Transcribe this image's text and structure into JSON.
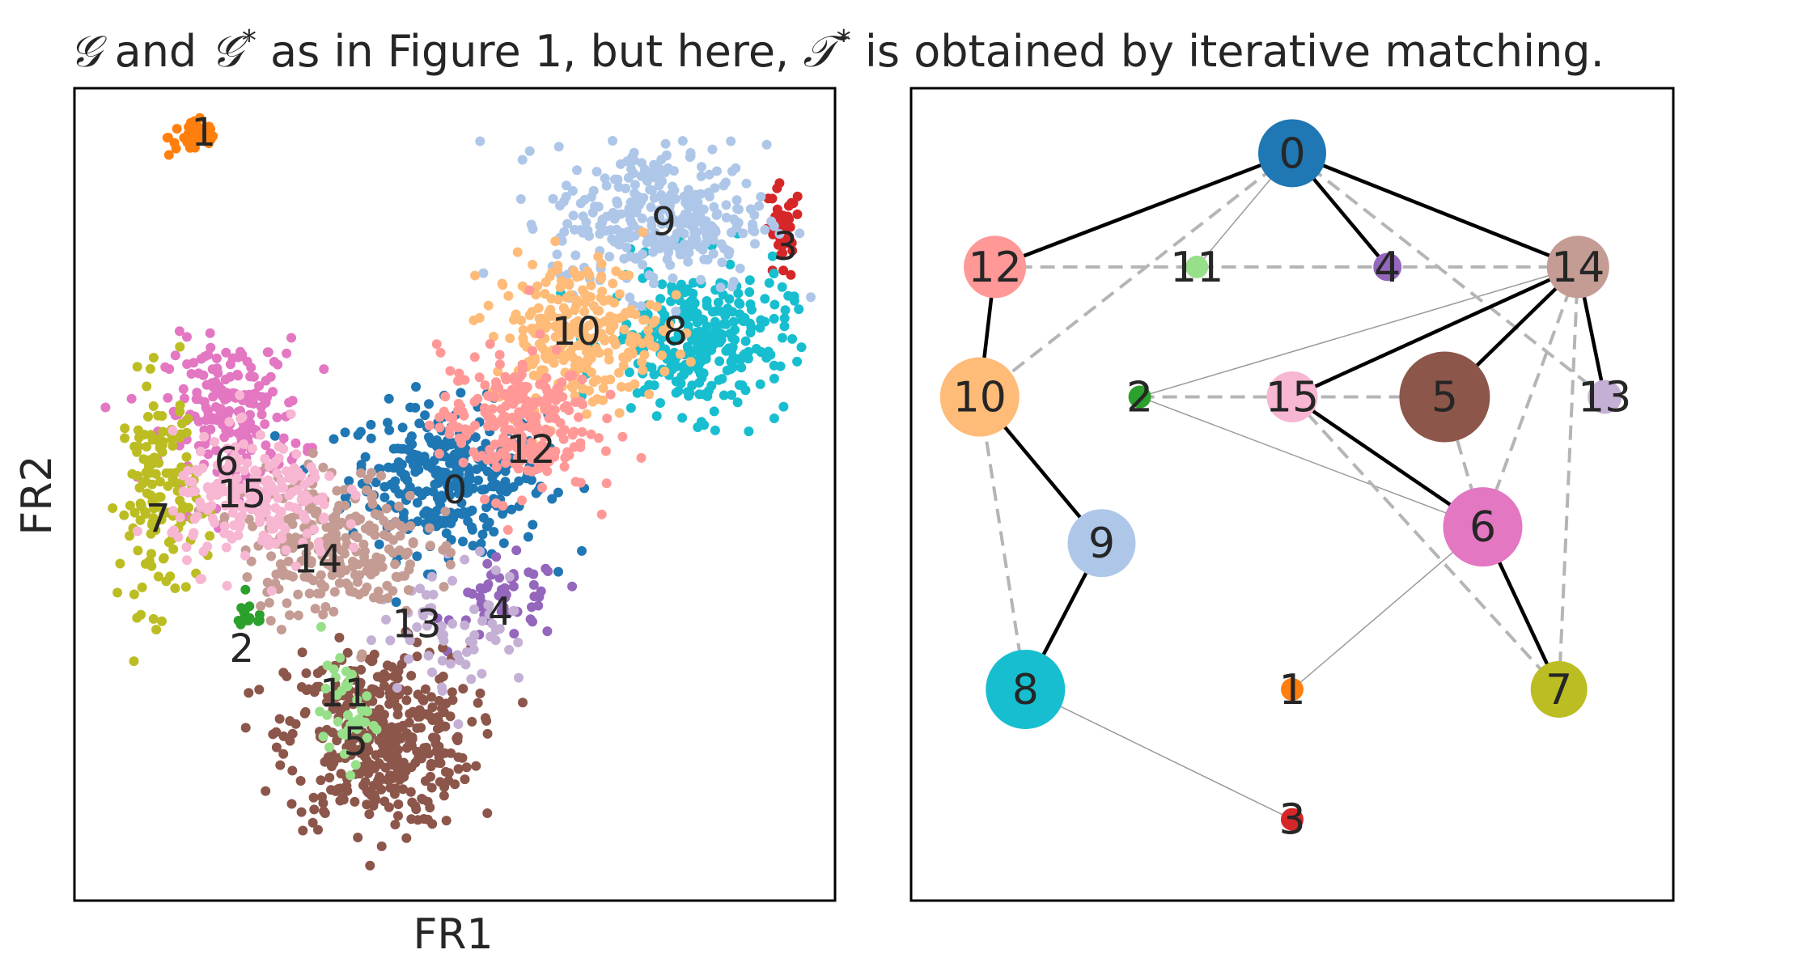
{
  "chart_data": [
    {
      "type": "scatter",
      "title_parts": [
        {
          "text": "𝒢",
          "italic": true
        },
        {
          "text": " and "
        },
        {
          "text": "𝒢",
          "italic": true
        },
        {
          "text": "*",
          "sup": true
        },
        {
          "text": " as in Figure 1, but here, "
        },
        {
          "text": "𝒯",
          "italic": true
        },
        {
          "text": "*",
          "sup": true
        },
        {
          "text": " is obtained by iterative matching."
        }
      ],
      "xlabel": "FR1",
      "ylabel": "FR2",
      "xticks": [],
      "yticks": [],
      "grid": false,
      "clusters": [
        {
          "id": "0",
          "color": "#1f77b4",
          "center": [
            4.9,
            5.2
          ],
          "spread": [
            0.65,
            0.45
          ],
          "n": 320,
          "label_at": [
            5.0,
            5.05
          ]
        },
        {
          "id": "1",
          "color": "#ff7f0e",
          "center": [
            1.6,
            9.4
          ],
          "spread": [
            0.18,
            0.12
          ],
          "n": 40,
          "label_at": [
            1.7,
            9.45
          ]
        },
        {
          "id": "2",
          "color": "#2ca02c",
          "center": [
            2.3,
            3.5
          ],
          "spread": [
            0.12,
            0.1
          ],
          "n": 14,
          "label_at": [
            2.2,
            3.1
          ]
        },
        {
          "id": "3",
          "color": "#d62728",
          "center": [
            9.3,
            8.2
          ],
          "spread": [
            0.13,
            0.3
          ],
          "n": 36,
          "label_at": [
            9.35,
            8.05
          ]
        },
        {
          "id": "4",
          "color": "#9467bd",
          "center": [
            5.7,
            3.7
          ],
          "spread": [
            0.35,
            0.25
          ],
          "n": 55,
          "label_at": [
            5.6,
            3.55
          ]
        },
        {
          "id": "5",
          "color": "#8c564b",
          "center": [
            4.0,
            2.0
          ],
          "spread": [
            0.6,
            0.55
          ],
          "n": 420,
          "label_at": [
            3.7,
            1.95
          ]
        },
        {
          "id": "6",
          "color": "#e377c2",
          "center": [
            2.1,
            6.0
          ],
          "spread": [
            0.45,
            0.45
          ],
          "n": 200,
          "label_at": [
            2.0,
            5.4
          ]
        },
        {
          "id": "7",
          "color": "#bcbd22",
          "center": [
            1.1,
            5.0
          ],
          "spread": [
            0.25,
            0.7
          ],
          "n": 140,
          "label_at": [
            1.1,
            4.7
          ]
        },
        {
          "id": "8",
          "color": "#17becf",
          "center": [
            8.2,
            6.9
          ],
          "spread": [
            0.6,
            0.45
          ],
          "n": 300,
          "label_at": [
            7.9,
            7.0
          ]
        },
        {
          "id": "9",
          "color": "#aec7e8",
          "center": [
            7.7,
            8.4
          ],
          "spread": [
            0.7,
            0.45
          ],
          "n": 320,
          "label_at": [
            7.75,
            8.35
          ]
        },
        {
          "id": "10",
          "color": "#ffbb78",
          "center": [
            6.6,
            7.0
          ],
          "spread": [
            0.55,
            0.45
          ],
          "n": 260,
          "label_at": [
            6.6,
            7.0
          ]
        },
        {
          "id": "11",
          "color": "#98df8a",
          "center": [
            3.6,
            2.3
          ],
          "spread": [
            0.18,
            0.3
          ],
          "n": 40,
          "label_at": [
            3.55,
            2.55
          ]
        },
        {
          "id": "12",
          "color": "#ff9896",
          "center": [
            5.8,
            5.9
          ],
          "spread": [
            0.5,
            0.45
          ],
          "n": 240,
          "label_at": [
            6.0,
            5.55
          ]
        },
        {
          "id": "13",
          "color": "#c5b0d5",
          "center": [
            5.0,
            3.4
          ],
          "spread": [
            0.5,
            0.4
          ],
          "n": 70,
          "label_at": [
            4.5,
            3.4
          ]
        },
        {
          "id": "14",
          "color": "#c49c94",
          "center": [
            3.4,
            4.4
          ],
          "spread": [
            0.6,
            0.45
          ],
          "n": 260,
          "label_at": [
            3.2,
            4.2
          ]
        },
        {
          "id": "15",
          "color": "#f7b6d2",
          "center": [
            2.4,
            4.9
          ],
          "spread": [
            0.55,
            0.4
          ],
          "n": 220,
          "label_at": [
            2.2,
            5.0
          ]
        }
      ],
      "xlim": [
        0,
        10
      ],
      "ylim": [
        0,
        10
      ]
    },
    {
      "type": "graph",
      "nodes": [
        {
          "id": "0",
          "x": 5.0,
          "y": 9.2,
          "size": 6,
          "color": "#1f77b4"
        },
        {
          "id": "1",
          "x": 5.0,
          "y": 2.6,
          "size": 2,
          "color": "#ff7f0e"
        },
        {
          "id": "2",
          "x": 3.0,
          "y": 6.2,
          "size": 2,
          "color": "#2ca02c"
        },
        {
          "id": "3",
          "x": 5.0,
          "y": 1.0,
          "size": 2,
          "color": "#d62728"
        },
        {
          "id": "4",
          "x": 6.25,
          "y": 7.8,
          "size": 2.5,
          "color": "#9467bd"
        },
        {
          "id": "5",
          "x": 7.0,
          "y": 6.2,
          "size": 8,
          "color": "#8c564b"
        },
        {
          "id": "6",
          "x": 7.5,
          "y": 4.6,
          "size": 7,
          "color": "#e377c2"
        },
        {
          "id": "7",
          "x": 8.5,
          "y": 2.6,
          "size": 5,
          "color": "#bcbd22"
        },
        {
          "id": "8",
          "x": 1.5,
          "y": 2.6,
          "size": 7,
          "color": "#17becf"
        },
        {
          "id": "9",
          "x": 2.5,
          "y": 4.4,
          "size": 6,
          "color": "#aec7e8"
        },
        {
          "id": "10",
          "x": 0.9,
          "y": 6.2,
          "size": 7,
          "color": "#ffbb78"
        },
        {
          "id": "11",
          "x": 3.75,
          "y": 7.8,
          "size": 2,
          "color": "#98df8a"
        },
        {
          "id": "12",
          "x": 1.1,
          "y": 7.8,
          "size": 5.5,
          "color": "#ff9896"
        },
        {
          "id": "13",
          "x": 9.1,
          "y": 6.2,
          "size": 3,
          "color": "#c5b0d5"
        },
        {
          "id": "14",
          "x": 8.75,
          "y": 7.8,
          "size": 5.5,
          "color": "#c49c94"
        },
        {
          "id": "15",
          "x": 5.0,
          "y": 6.2,
          "size": 4.5,
          "color": "#f7b6d2"
        }
      ],
      "tree_edges": [
        [
          "0",
          "12"
        ],
        [
          "0",
          "14"
        ],
        [
          "0",
          "4"
        ],
        [
          "12",
          "10"
        ],
        [
          "10",
          "9"
        ],
        [
          "9",
          "8"
        ],
        [
          "14",
          "15"
        ],
        [
          "14",
          "5"
        ],
        [
          "14",
          "13"
        ],
        [
          "15",
          "6"
        ],
        [
          "6",
          "7"
        ]
      ],
      "dashed_edges": [
        [
          "0",
          "10"
        ],
        [
          "10",
          "8"
        ],
        [
          "14",
          "6"
        ],
        [
          "14",
          "7"
        ],
        [
          "5",
          "6"
        ],
        [
          "15",
          "7"
        ],
        [
          "0",
          "14"
        ],
        [
          "12",
          "14"
        ],
        [
          "2",
          "5"
        ],
        [
          "0",
          "13"
        ]
      ],
      "thin_edges": [
        [
          "0",
          "11"
        ],
        [
          "2",
          "14"
        ],
        [
          "2",
          "6"
        ],
        [
          "6",
          "1"
        ],
        [
          "8",
          "3"
        ]
      ],
      "xlim": [
        0,
        10
      ],
      "ylim": [
        0,
        10
      ]
    }
  ]
}
